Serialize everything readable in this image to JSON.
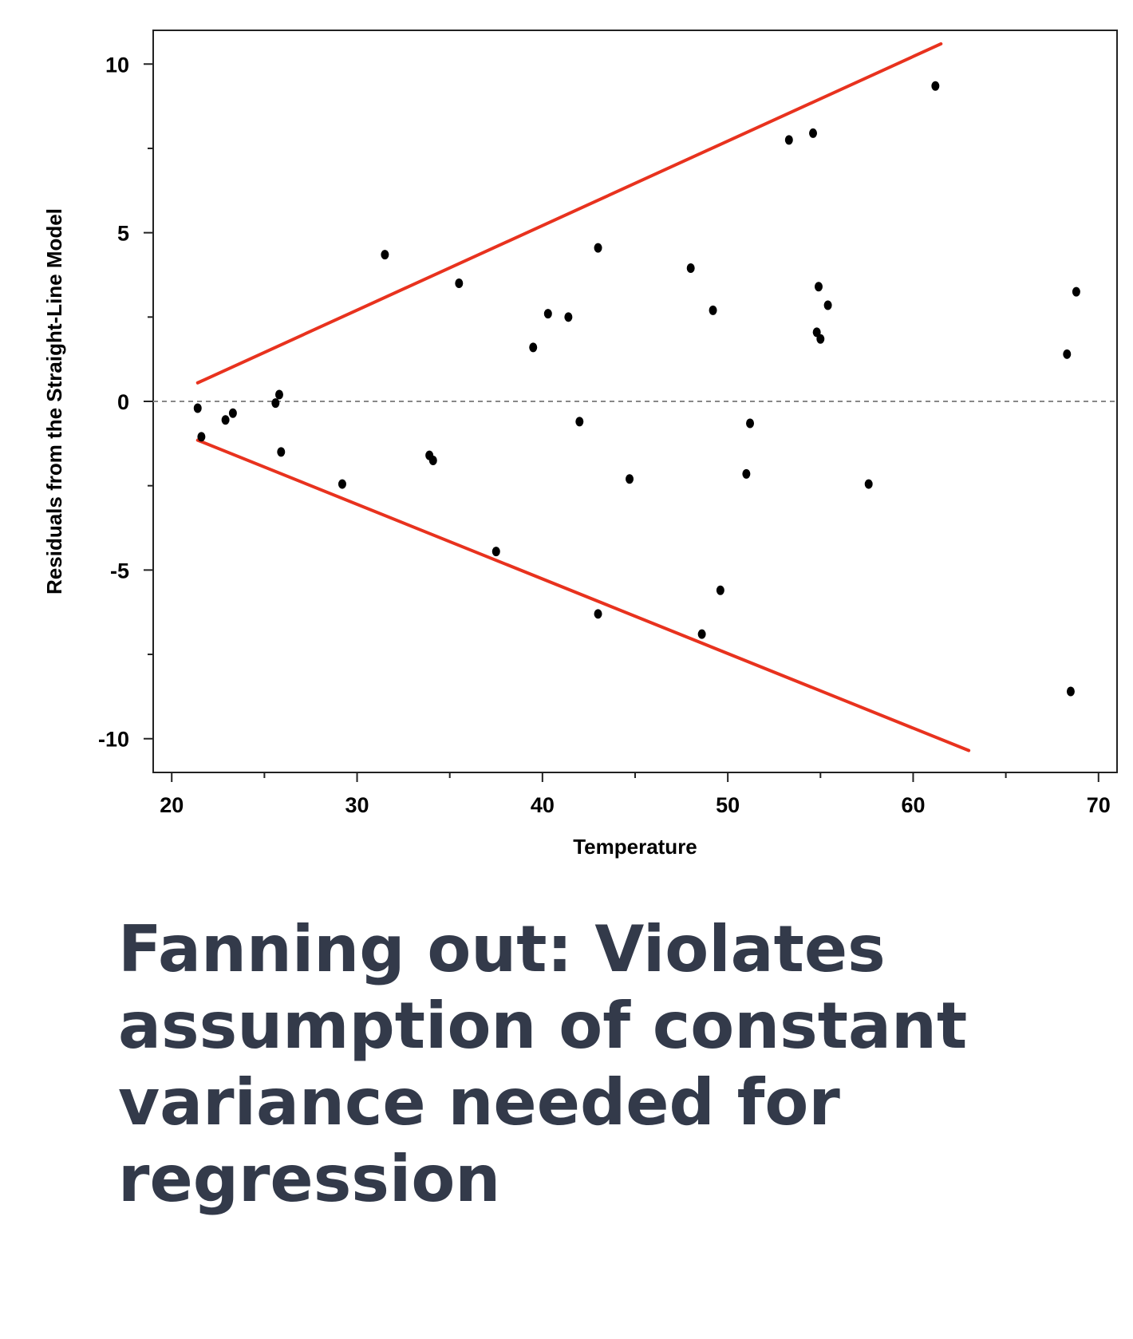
{
  "chart_data": {
    "type": "scatter",
    "title": "",
    "xlabel": "Temperature",
    "ylabel": "Residuals from the Straight-Line Model",
    "xlim": [
      19,
      71
    ],
    "ylim": [
      -11,
      11
    ],
    "x_ticks": [
      20,
      30,
      40,
      50,
      60,
      70
    ],
    "y_ticks": [
      10,
      5,
      0,
      -5,
      -10
    ],
    "grid": false,
    "reference_line": {
      "y": 0,
      "style": "dashed",
      "color": "#888888"
    },
    "points": [
      [
        21.4,
        -0.2
      ],
      [
        21.6,
        -1.05
      ],
      [
        22.9,
        -0.55
      ],
      [
        23.3,
        -0.35
      ],
      [
        25.6,
        -0.05
      ],
      [
        25.8,
        0.2
      ],
      [
        25.9,
        -1.5
      ],
      [
        29.2,
        -2.45
      ],
      [
        31.5,
        4.35
      ],
      [
        33.9,
        -1.6
      ],
      [
        34.1,
        -1.75
      ],
      [
        35.5,
        3.5
      ],
      [
        37.5,
        -4.45
      ],
      [
        39.5,
        1.6
      ],
      [
        40.3,
        2.6
      ],
      [
        41.4,
        2.5
      ],
      [
        42.0,
        -0.6
      ],
      [
        43.0,
        4.55
      ],
      [
        43.0,
        -6.3
      ],
      [
        44.7,
        -2.3
      ],
      [
        48.0,
        3.95
      ],
      [
        48.6,
        -6.9
      ],
      [
        49.2,
        2.7
      ],
      [
        49.6,
        -5.6
      ],
      [
        51.0,
        -2.15
      ],
      [
        51.2,
        -0.65
      ],
      [
        53.3,
        7.75
      ],
      [
        54.6,
        7.95
      ],
      [
        54.8,
        2.05
      ],
      [
        54.9,
        3.4
      ],
      [
        55.0,
        1.85
      ],
      [
        55.4,
        2.85
      ],
      [
        57.6,
        -2.45
      ],
      [
        61.2,
        9.35
      ],
      [
        68.3,
        1.4
      ],
      [
        68.5,
        -8.6
      ],
      [
        68.8,
        3.25
      ]
    ],
    "envelope_lines": [
      {
        "color": "#e8321e",
        "points": [
          [
            21.4,
            0.55
          ],
          [
            61.5,
            10.6
          ]
        ]
      },
      {
        "color": "#e8321e",
        "points": [
          [
            21.4,
            -1.15
          ],
          [
            63.0,
            -10.35
          ]
        ]
      }
    ]
  },
  "caption": {
    "text": "Fanning out: Violates assumption of constant variance needed for regression"
  }
}
